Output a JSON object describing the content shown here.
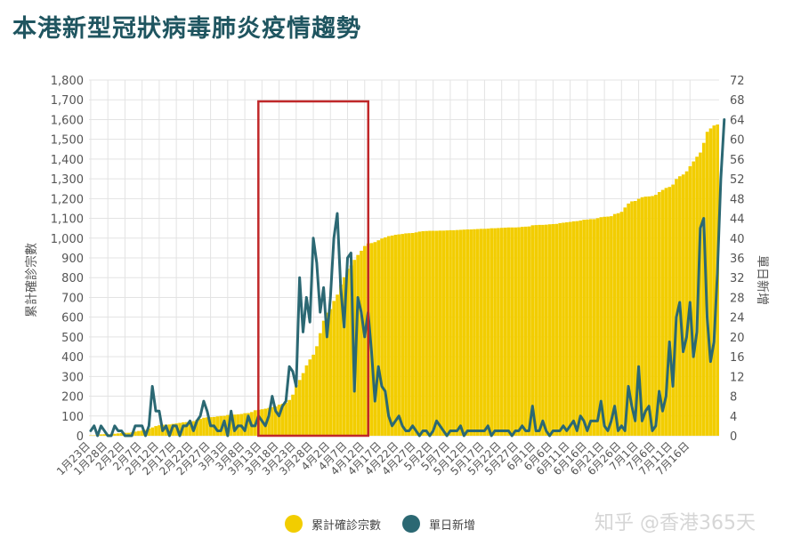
{
  "title": "本港新型冠狀病毒肺炎疫情趨勢",
  "watermark": "知乎 @香港365天",
  "colors": {
    "title": "#1f5560",
    "bars": "#f2cd00",
    "line": "#2b6873",
    "highlight": "#c0282a",
    "grid": "#e3e3e3"
  },
  "chart_data": {
    "type": "bar+line",
    "ylabel_left": "累計確診宗數",
    "ylabel_right": "單日新增",
    "ylim_left": [
      0,
      1800
    ],
    "ylim_right": [
      0,
      72
    ],
    "yticks_left": [
      "0",
      "100",
      "200",
      "300",
      "400",
      "500",
      "600",
      "700",
      "800",
      "900",
      "1,000",
      "1,100",
      "1,200",
      "1,300",
      "1,400",
      "1,500",
      "1,600",
      "1,700",
      "1,800"
    ],
    "yticks_right": [
      "0",
      "4",
      "8",
      "12",
      "16",
      "20",
      "24",
      "28",
      "32",
      "36",
      "40",
      "44",
      "48",
      "52",
      "56",
      "60",
      "64",
      "68",
      "72"
    ],
    "xtick_labels": [
      "1月23日",
      "1月28日",
      "2月2日",
      "2月7日",
      "2月12日",
      "2月17日",
      "2月22日",
      "2月27日",
      "3月3日",
      "3月8日",
      "3月13日",
      "3月18日",
      "3月23日",
      "3月28日",
      "4月2日",
      "4月7日",
      "4月12日",
      "4月17日",
      "4月22日",
      "4月27日",
      "5月2日",
      "5月7日",
      "5月12日",
      "5月17日",
      "5月22日",
      "5月27日",
      "6月1日",
      "6月6日",
      "6月11日",
      "6月16日",
      "6月21日",
      "6月26日",
      "7月1日",
      "7月6日",
      "7月11日",
      "7月16日"
    ],
    "grid": true,
    "highlight_box": {
      "from": "3月13日",
      "to": "4月12日"
    },
    "series": [
      {
        "name": "累計確診宗數",
        "type": "bar",
        "axis": "left",
        "values": [
          2,
          2,
          5,
          7,
          8,
          8,
          8,
          10,
          12,
          14,
          15,
          15,
          17,
          21,
          24,
          26,
          29,
          36,
          42,
          49,
          53,
          56,
          56,
          57,
          60,
          62,
          65,
          68,
          69,
          70,
          74,
          81,
          85,
          91,
          93,
          94,
          95,
          98,
          100,
          101,
          105,
          105,
          107,
          108,
          110,
          114,
          115,
          120,
          129,
          131,
          134,
          137,
          141,
          145,
          148,
          157,
          162,
          167,
          181,
          208,
          256,
          282,
          317,
          356,
          386,
          410,
          453,
          519,
          582,
          623,
          641,
          682,
          714,
          765,
          802,
          845,
          862,
          890,
          915,
          936,
          960,
          973,
          975,
          980,
          989,
          998,
          1004,
          1010,
          1013,
          1017,
          1019,
          1021,
          1024,
          1025,
          1026,
          1029,
          1033,
          1035,
          1036,
          1037,
          1037,
          1037,
          1038,
          1038,
          1039,
          1040,
          1040,
          1041,
          1042,
          1043,
          1044,
          1044,
          1045,
          1046,
          1047,
          1047,
          1048,
          1050,
          1050,
          1051,
          1052,
          1053,
          1054,
          1054,
          1054,
          1055,
          1057,
          1058,
          1059,
          1065,
          1066,
          1067,
          1067,
          1068,
          1070,
          1071,
          1072,
          1076,
          1078,
          1080,
          1082,
          1085,
          1086,
          1089,
          1093,
          1094,
          1096,
          1096,
          1101,
          1106,
          1108,
          1109,
          1111,
          1122,
          1126,
          1133,
          1155,
          1175,
          1186,
          1188,
          1199,
          1207,
          1210,
          1211,
          1213,
          1219,
          1233,
          1244,
          1254,
          1259,
          1271,
          1299,
          1313,
          1322,
          1338,
          1364,
          1388,
          1412,
          1433,
          1482,
          1538,
          1555,
          1570,
          1575
        ]
      },
      {
        "name": "單日新增",
        "type": "line",
        "axis": "right",
        "values": [
          1,
          2,
          0,
          2,
          1,
          0,
          0,
          2,
          1,
          1,
          0,
          0,
          0,
          2,
          2,
          2,
          0,
          2,
          10,
          5,
          5,
          1,
          2,
          0,
          2,
          2,
          0,
          2,
          2,
          3,
          1,
          3,
          4,
          7,
          5,
          2,
          2,
          1,
          1,
          3,
          0,
          5,
          1,
          2,
          2,
          1,
          4,
          2,
          2,
          4,
          3,
          2,
          4,
          8,
          5,
          4,
          6,
          7,
          14,
          13,
          10,
          32,
          21,
          28,
          23,
          40,
          35,
          25,
          30,
          20,
          28,
          40,
          45,
          30,
          22,
          36,
          37,
          9,
          28,
          25,
          20,
          25,
          17,
          7,
          14,
          10,
          9,
          4,
          2,
          3,
          4,
          2,
          1,
          1,
          2,
          1,
          0,
          1,
          1,
          0,
          1,
          3,
          2,
          1,
          0,
          1,
          1,
          1,
          2,
          0,
          1,
          1,
          1,
          1,
          1,
          1,
          2,
          0,
          1,
          1,
          1,
          1,
          1,
          0,
          1,
          1,
          2,
          1,
          1,
          6,
          1,
          1,
          3,
          1,
          0,
          1,
          1,
          1,
          2,
          1,
          2,
          3,
          1,
          4,
          3,
          1,
          3,
          3,
          3,
          7,
          2,
          1,
          3,
          6,
          1,
          2,
          1,
          10,
          6,
          3,
          14,
          3,
          5,
          6,
          1,
          2,
          9,
          5,
          8,
          19,
          10,
          24,
          27,
          17,
          20,
          27,
          16,
          21,
          42,
          44,
          24,
          15,
          19,
          33,
          52,
          64
        ]
      }
    ]
  }
}
